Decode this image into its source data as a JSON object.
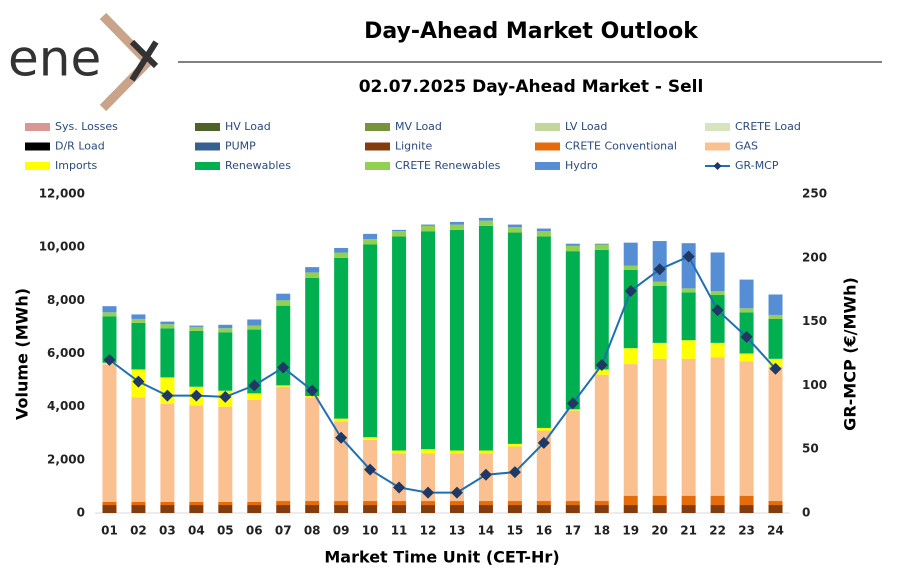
{
  "logo": "ene",
  "chart_data": {
    "type": "bar",
    "stacked": true,
    "title": "Day-Ahead Market Outlook",
    "subtitle": "02.07.2025  Day-Ahead Market - Sell",
    "x_label": "Market Time Unit (CET-Hr)",
    "y_label": "Volume (MWh)",
    "y2_label": "GR-MCP (€/MWh)",
    "categories": [
      "01",
      "02",
      "03",
      "04",
      "05",
      "06",
      "07",
      "08",
      "09",
      "10",
      "11",
      "12",
      "13",
      "14",
      "15",
      "16",
      "17",
      "18",
      "19",
      "20",
      "21",
      "22",
      "23",
      "24"
    ],
    "ylim": [
      0,
      12000
    ],
    "yticks": [
      0,
      {
        "value": 2000,
        "label": "2,000"
      },
      {
        "value": 4000,
        "label": "4,000"
      },
      {
        "value": 6000,
        "label": "6,000"
      },
      {
        "value": 8000,
        "label": "8,000"
      },
      {
        "value": 10000,
        "label": "10,000"
      },
      {
        "value": 12000,
        "label": "12,000"
      }
    ],
    "y2lim": [
      0,
      250
    ],
    "y2ticks": [
      0,
      50,
      100,
      150,
      200,
      250
    ],
    "grid": false,
    "legend_position": "top",
    "series": [
      {
        "name": "Sys. Losses",
        "color": "#d99694",
        "values": [
          0,
          0,
          0,
          0,
          0,
          0,
          0,
          0,
          0,
          0,
          0,
          0,
          0,
          0,
          0,
          0,
          0,
          0,
          0,
          0,
          0,
          0,
          0,
          0
        ]
      },
      {
        "name": "HV Load",
        "color": "#4f6228",
        "values": [
          0,
          0,
          0,
          0,
          0,
          0,
          0,
          0,
          0,
          0,
          0,
          0,
          0,
          0,
          0,
          0,
          0,
          0,
          0,
          0,
          0,
          0,
          0,
          0
        ]
      },
      {
        "name": "MV Load",
        "color": "#77933c",
        "values": [
          0,
          0,
          0,
          0,
          0,
          0,
          0,
          0,
          0,
          0,
          0,
          0,
          0,
          0,
          0,
          0,
          0,
          0,
          0,
          0,
          0,
          0,
          0,
          0
        ]
      },
      {
        "name": "LV Load",
        "color": "#c3d69b",
        "values": [
          0,
          0,
          0,
          0,
          0,
          0,
          0,
          0,
          0,
          0,
          0,
          0,
          0,
          0,
          0,
          0,
          0,
          0,
          0,
          0,
          0,
          0,
          0,
          0
        ]
      },
      {
        "name": "CRETE Load",
        "color": "#d7e4bd",
        "values": [
          0,
          0,
          0,
          0,
          0,
          0,
          0,
          0,
          0,
          0,
          0,
          0,
          0,
          0,
          0,
          0,
          0,
          0,
          0,
          0,
          0,
          0,
          0,
          0
        ]
      },
      {
        "name": "D/R Load",
        "color": "#000000",
        "values": [
          0,
          0,
          0,
          0,
          0,
          0,
          0,
          0,
          0,
          0,
          0,
          0,
          0,
          0,
          0,
          0,
          0,
          0,
          0,
          0,
          0,
          0,
          0,
          0
        ]
      },
      {
        "name": "PUMP",
        "color": "#376092",
        "values": [
          0,
          0,
          0,
          0,
          0,
          0,
          0,
          0,
          0,
          0,
          0,
          0,
          0,
          0,
          0,
          0,
          0,
          0,
          0,
          0,
          0,
          0,
          0,
          0
        ]
      },
      {
        "name": "Lignite",
        "color": "#843c0c",
        "values": [
          300,
          300,
          300,
          300,
          300,
          300,
          300,
          300,
          300,
          300,
          300,
          300,
          300,
          300,
          300,
          300,
          300,
          300,
          300,
          300,
          300,
          300,
          300,
          300
        ]
      },
      {
        "name": "CRETE Conventional",
        "color": "#e46c0a",
        "values": [
          120,
          120,
          120,
          120,
          120,
          120,
          150,
          150,
          150,
          150,
          150,
          150,
          150,
          150,
          150,
          150,
          150,
          150,
          350,
          350,
          350,
          350,
          350,
          150
        ]
      },
      {
        "name": "GAS",
        "color": "#fac090",
        "values": [
          5180,
          3930,
          3680,
          3630,
          3580,
          3830,
          4300,
          3900,
          3000,
          2300,
          1800,
          1800,
          1800,
          1800,
          2050,
          2650,
          3400,
          4750,
          4950,
          5150,
          5150,
          5200,
          5050,
          5050
        ]
      },
      {
        "name": "Imports",
        "color": "#ffff00",
        "values": [
          50,
          1050,
          1000,
          700,
          600,
          250,
          50,
          50,
          100,
          100,
          100,
          150,
          100,
          100,
          100,
          100,
          50,
          200,
          600,
          600,
          700,
          550,
          300,
          300
        ]
      },
      {
        "name": "Renewables",
        "color": "#00b050",
        "values": [
          1750,
          1750,
          1850,
          2100,
          2200,
          2400,
          3000,
          4450,
          6050,
          7250,
          8050,
          8200,
          8300,
          8450,
          7950,
          7200,
          5950,
          4500,
          2950,
          2150,
          1800,
          1800,
          1550,
          1500
        ]
      },
      {
        "name": "CRETE Renewables",
        "color": "#92d050",
        "values": [
          150,
          150,
          150,
          150,
          150,
          150,
          200,
          200,
          200,
          200,
          200,
          200,
          200,
          200,
          200,
          200,
          200,
          200,
          150,
          150,
          150,
          150,
          150,
          150
        ]
      },
      {
        "name": "Hydro",
        "color": "#558ed5",
        "values": [
          230,
          170,
          100,
          50,
          130,
          230,
          250,
          200,
          170,
          200,
          50,
          50,
          100,
          100,
          100,
          100,
          80,
          30,
          870,
          1530,
          1700,
          1450,
          1080,
          770
        ]
      },
      {
        "name": "GR-MCP",
        "color": "#1f6fb5",
        "marker_color": "#1f3864",
        "axis": "y2",
        "type": "line",
        "values": [
          120,
          103,
          92,
          92,
          91,
          100,
          114,
          96,
          59,
          34,
          20,
          16,
          16,
          30,
          32,
          55,
          86,
          116,
          174,
          191,
          201,
          159,
          138,
          113
        ]
      }
    ]
  }
}
